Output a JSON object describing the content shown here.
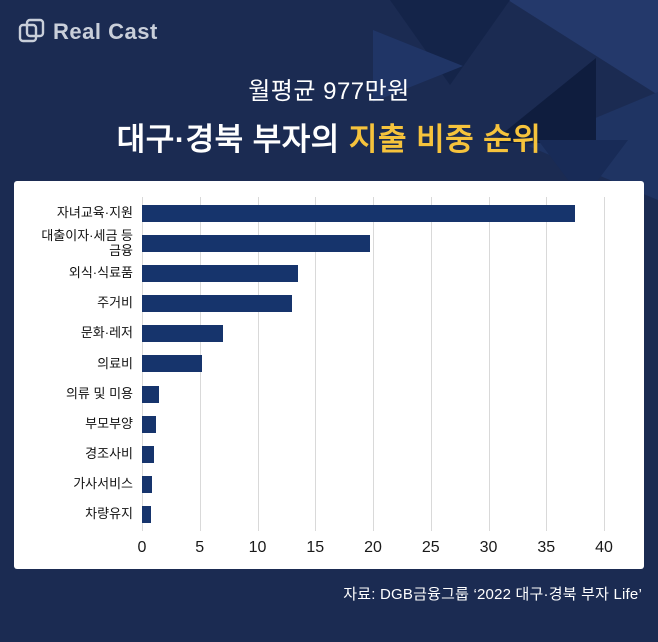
{
  "brand": {
    "name": "Real Cast"
  },
  "header": {
    "subtitle": "월평균 977만원",
    "title_white": "대구·경북 부자의",
    "title_yellow": "지출 비중 순위"
  },
  "footer": {
    "source": "자료: DGB금융그룹 ‘2022 대구·경북 부자 Life’"
  },
  "colors": {
    "background": "#1b2b52",
    "accent_yellow": "#f6c33c",
    "bar": "#16346c",
    "panel": "#ffffff"
  },
  "chart_data": {
    "type": "bar",
    "orientation": "horizontal",
    "title": "대구·경북 부자의 지출 비중 순위",
    "subtitle": "월평균 977만원",
    "categories": [
      "자녀교육·지원",
      "대출이자·세금 등\n금융",
      "외식·식료품",
      "주거비",
      "문화·레저",
      "의료비",
      "의류 및 미용",
      "부모부양",
      "경조사비",
      "가사서비스",
      "차량유지"
    ],
    "values": [
      37.5,
      19.7,
      13.5,
      13.0,
      7.0,
      5.2,
      1.5,
      1.2,
      1.0,
      0.9,
      0.8
    ],
    "xlim": [
      0,
      40
    ],
    "xticks": [
      0,
      5,
      10,
      15,
      20,
      25,
      30,
      35,
      40
    ],
    "grid": true,
    "legend": false
  }
}
